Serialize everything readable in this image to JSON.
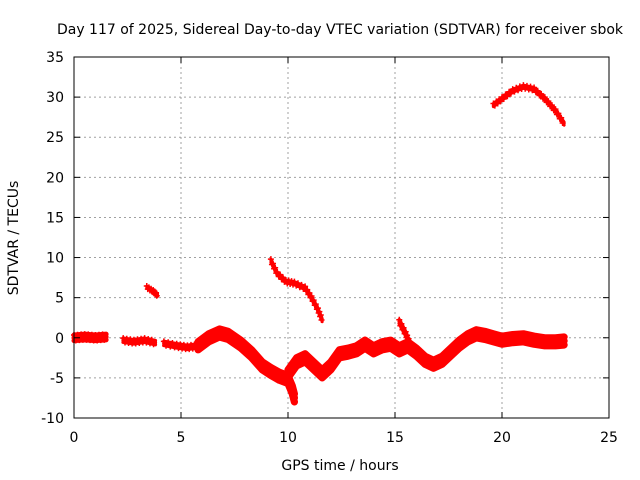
{
  "chart_data": {
    "type": "scatter",
    "title": "Day 117 of 2025, Sidereal Day-to-day VTEC variation (SDTVAR) for receiver sbok",
    "xlabel": "GPS time / hours",
    "ylabel": "SDTVAR / TECUs",
    "xlim": [
      0,
      25
    ],
    "ylim": [
      -10,
      35
    ],
    "xticks": [
      "0",
      "5",
      "10",
      "15",
      "20",
      "25"
    ],
    "yticks": [
      "-10",
      "-5",
      "0",
      "5",
      "10",
      "15",
      "20",
      "25",
      "30",
      "35"
    ],
    "grid": true,
    "series_color": "#ff0000",
    "series": [
      {
        "name": "main",
        "band": 0.7,
        "points": [
          [
            0.0,
            0.0
          ],
          [
            0.5,
            0.1
          ],
          [
            1.0,
            0.0
          ],
          [
            1.5,
            0.1
          ]
        ]
      },
      {
        "name": "main",
        "band": 0.5,
        "points": [
          [
            2.3,
            -0.3
          ],
          [
            2.8,
            -0.5
          ],
          [
            3.3,
            -0.3
          ],
          [
            3.8,
            -0.6
          ]
        ]
      },
      {
        "name": "main",
        "band": 0.5,
        "points": [
          [
            4.2,
            -0.7
          ],
          [
            4.8,
            -1.0
          ],
          [
            5.3,
            -1.2
          ],
          [
            5.8,
            -1.0
          ]
        ]
      },
      {
        "name": "main",
        "band": 1.0,
        "points": [
          [
            5.8,
            -1.0
          ],
          [
            6.3,
            0.0
          ],
          [
            6.8,
            0.6
          ],
          [
            7.2,
            0.3
          ],
          [
            7.8,
            -0.8
          ],
          [
            8.3,
            -2.0
          ],
          [
            8.8,
            -3.5
          ],
          [
            9.2,
            -4.2
          ],
          [
            9.6,
            -4.8
          ],
          [
            10.0,
            -5.2
          ],
          [
            10.2,
            -6.5
          ],
          [
            10.3,
            -7.5
          ]
        ]
      },
      {
        "name": "main",
        "band": 1.0,
        "points": [
          [
            10.0,
            -4.5
          ],
          [
            10.4,
            -3.0
          ],
          [
            10.8,
            -2.5
          ],
          [
            11.2,
            -3.5
          ],
          [
            11.6,
            -4.5
          ],
          [
            12.0,
            -3.5
          ],
          [
            12.4,
            -2.0
          ],
          [
            12.8,
            -1.8
          ],
          [
            13.2,
            -1.5
          ],
          [
            13.6,
            -0.8
          ],
          [
            14.0,
            -1.5
          ],
          [
            14.4,
            -1.0
          ],
          [
            14.8,
            -0.8
          ],
          [
            15.2,
            -1.5
          ],
          [
            15.6,
            -1.0
          ],
          [
            16.0,
            -1.8
          ],
          [
            16.4,
            -2.8
          ],
          [
            16.8,
            -3.3
          ],
          [
            17.2,
            -2.8
          ],
          [
            17.6,
            -1.8
          ],
          [
            18.0,
            -0.8
          ],
          [
            18.4,
            0.0
          ],
          [
            18.8,
            0.5
          ],
          [
            19.2,
            0.3
          ],
          [
            19.6,
            0.0
          ],
          [
            20.0,
            -0.3
          ],
          [
            20.5,
            -0.1
          ],
          [
            21.0,
            0.0
          ],
          [
            21.5,
            -0.3
          ],
          [
            22.0,
            -0.5
          ],
          [
            22.5,
            -0.5
          ],
          [
            22.9,
            -0.4
          ]
        ]
      },
      {
        "name": "upper",
        "band": 0.3,
        "points": [
          [
            3.4,
            6.3
          ],
          [
            3.7,
            5.8
          ],
          [
            3.9,
            5.3
          ]
        ]
      },
      {
        "name": "upper",
        "band": 0.4,
        "points": [
          [
            9.2,
            9.6
          ],
          [
            9.5,
            8.0
          ],
          [
            9.9,
            7.0
          ],
          [
            10.3,
            6.8
          ],
          [
            10.8,
            6.2
          ],
          [
            11.1,
            5.0
          ],
          [
            11.4,
            3.5
          ],
          [
            11.6,
            2.2
          ]
        ]
      },
      {
        "name": "upper",
        "band": 0.4,
        "points": [
          [
            19.6,
            29.0
          ],
          [
            20.0,
            29.8
          ],
          [
            20.5,
            30.8
          ],
          [
            21.0,
            31.3
          ],
          [
            21.5,
            31.0
          ],
          [
            22.0,
            29.8
          ],
          [
            22.5,
            28.3
          ],
          [
            22.9,
            26.7
          ]
        ]
      },
      {
        "name": "spike",
        "band": 0.5,
        "points": [
          [
            15.2,
            2.0
          ],
          [
            15.5,
            0.5
          ],
          [
            15.7,
            -0.8
          ]
        ]
      }
    ]
  }
}
